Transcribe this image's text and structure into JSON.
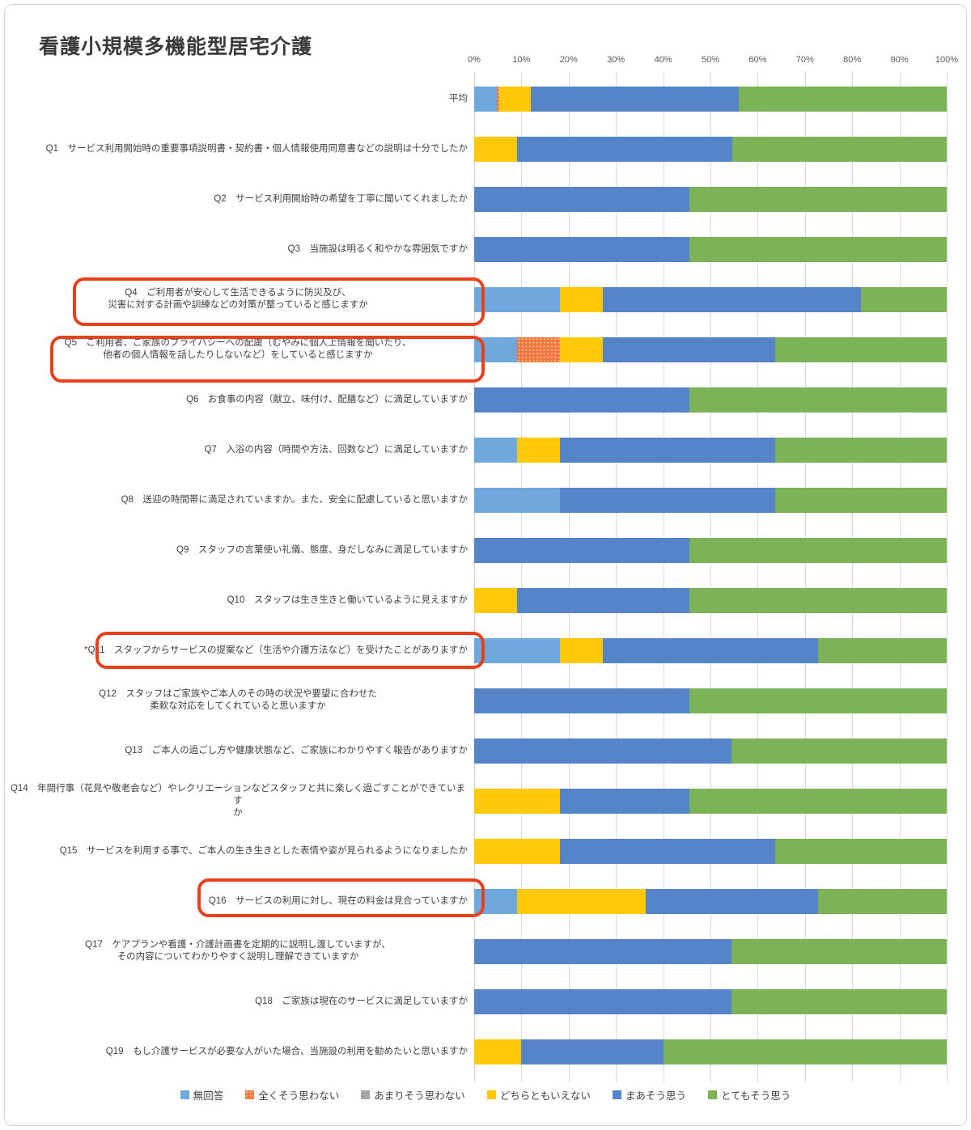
{
  "chart_data": {
    "type": "bar",
    "variant": "stacked-100-horizontal",
    "title": "看護小規模多機能型居宅介護",
    "x_axis": {
      "ticks": [
        "0%",
        "10%",
        "20%",
        "30%",
        "40%",
        "50%",
        "60%",
        "70%",
        "80%",
        "90%",
        "100%"
      ],
      "range": [
        0,
        100
      ],
      "unit": "%"
    },
    "grid": true,
    "legend_position": "bottom",
    "series": [
      {
        "key": "no-answer",
        "name": "無回答",
        "color": "#6FA8DC",
        "pattern": "solid"
      },
      {
        "key": "strongly-disagree",
        "name": "全くそう思わない",
        "color": "#F2764B",
        "pattern": "dotted"
      },
      {
        "key": "somewhat-disagree",
        "name": "あまりそう思わない",
        "color": "#A6A6A6",
        "pattern": "solid"
      },
      {
        "key": "neutral",
        "name": "どちらともいえない",
        "color": "#FFC907",
        "pattern": "solid"
      },
      {
        "key": "somewhat-agree",
        "name": "まあそう思う",
        "color": "#5585C8",
        "pattern": "solid"
      },
      {
        "key": "strongly-agree",
        "name": "とてもそう思う",
        "color": "#7DB357",
        "pattern": "solid"
      }
    ],
    "annotations": {
      "highlight_box_color": "#E8401C",
      "highlighted_rows": [
        "Q4",
        "Q5",
        "*Q11",
        "Q16"
      ]
    },
    "rows": [
      {
        "num": "",
        "lines": [
          "平均"
        ],
        "highlighted": false,
        "values": [
          4.8,
          0.5,
          0,
          6.7,
          44,
          44
        ]
      },
      {
        "num": "Q1",
        "lines": [
          "サービス利用開始時の重要事項説明書・契約書・個人情報使用同意書などの説明は十分でしたか"
        ],
        "highlighted": false,
        "values": [
          0,
          0,
          0,
          9.1,
          45.5,
          45.5
        ]
      },
      {
        "num": "Q2",
        "lines": [
          "サービス利用開始時の希望を丁寧に聞いてくれましたか"
        ],
        "highlighted": false,
        "values": [
          0,
          0,
          0,
          0,
          45.5,
          54.5
        ]
      },
      {
        "num": "Q3",
        "lines": [
          "当施設は明るく和やかな雰囲気ですか"
        ],
        "highlighted": false,
        "values": [
          0,
          0,
          0,
          0,
          45.5,
          54.5
        ]
      },
      {
        "num": "Q4",
        "lines": [
          "ご利用者が安心して生活できるように防災及び、",
          "災害に対する計画や訓練などの対策が整っていると感じますか"
        ],
        "highlighted": true,
        "values": [
          18.2,
          0,
          0,
          9.1,
          54.5,
          18.2
        ]
      },
      {
        "num": "Q5",
        "lines": [
          "ご利用者、ご家族のプライバシーへの配慮（むやみに個人上情報を聞いたり、",
          "他者の個人情報を話したりしないなど）をしていると感じますか"
        ],
        "highlighted": true,
        "values": [
          9.1,
          9.1,
          0,
          9.1,
          36.4,
          36.4
        ]
      },
      {
        "num": "Q6",
        "lines": [
          "お食事の内容（献立、味付け、配膳など）に満足していますか"
        ],
        "highlighted": false,
        "values": [
          0,
          0,
          0,
          0,
          45.5,
          54.5
        ]
      },
      {
        "num": "Q7",
        "lines": [
          "入浴の内容（時間や方法、回数など）に満足していますか"
        ],
        "highlighted": false,
        "values": [
          9.1,
          0,
          0,
          9.1,
          45.5,
          36.4
        ]
      },
      {
        "num": "Q8",
        "lines": [
          "送迎の時間帯に満足されていますか。また、安全に配慮していると思いますか"
        ],
        "highlighted": false,
        "values": [
          18.2,
          0,
          0,
          0,
          45.5,
          36.4
        ]
      },
      {
        "num": "Q9",
        "lines": [
          "スタッフの言葉使い礼儀、態度、身だしなみに満足していますか"
        ],
        "highlighted": false,
        "values": [
          0,
          0,
          0,
          0,
          45.5,
          54.5
        ]
      },
      {
        "num": "Q10",
        "lines": [
          "スタッフは生き生きと働いているように見えますか"
        ],
        "highlighted": false,
        "values": [
          0,
          0,
          0,
          9.1,
          36.4,
          54.5
        ]
      },
      {
        "num": "*Q11",
        "lines": [
          "スタッフからサービスの提案など（生活や介護方法など）を受けたことがありますか"
        ],
        "highlighted": true,
        "values": [
          18.2,
          0,
          0,
          9.1,
          45.5,
          27.3
        ]
      },
      {
        "num": "Q12",
        "lines": [
          "スタッフはご家族やご本人のその時の状況や要望に合わせた",
          "柔軟な対応をしてくれていると思いますか"
        ],
        "highlighted": false,
        "values": [
          0,
          0,
          0,
          0,
          45.5,
          54.5
        ]
      },
      {
        "num": "Q13",
        "lines": [
          "ご本人の過ごし方や健康状態など、ご家族にわかりやすく報告がありますか"
        ],
        "highlighted": false,
        "values": [
          0,
          0,
          0,
          0,
          54.5,
          45.5
        ]
      },
      {
        "num": "Q14",
        "lines": [
          "年間行事（花見や敬老会など）やレクリエーションなどスタッフと共に楽しく過ごすことができています",
          "か"
        ],
        "highlighted": false,
        "values": [
          0,
          0,
          0,
          18.2,
          27.3,
          54.5
        ]
      },
      {
        "num": "Q15",
        "lines": [
          "サービスを利用する事で、ご本人の生き生きとした表情や姿が見られるようになりましたか"
        ],
        "highlighted": false,
        "values": [
          0,
          0,
          0,
          18.2,
          45.5,
          36.4
        ]
      },
      {
        "num": "Q16",
        "lines": [
          "サービスの利用に対し、現在の料金は見合っていますか"
        ],
        "highlighted": true,
        "values": [
          9.1,
          0,
          0,
          27.3,
          36.4,
          27.3
        ]
      },
      {
        "num": "Q17",
        "lines": [
          "ケアプランや看護・介護計画書を定期的に説明し渡していますが、",
          "その内容についてわかりやすく説明し理解できていますか"
        ],
        "highlighted": false,
        "values": [
          0,
          0,
          0,
          0,
          54.5,
          45.5
        ]
      },
      {
        "num": "Q18",
        "lines": [
          "ご家族は現在のサービスに満足していますか"
        ],
        "highlighted": false,
        "values": [
          0,
          0,
          0,
          0,
          54.5,
          45.5
        ]
      },
      {
        "num": "Q19",
        "lines": [
          "もし介護サービスが必要な人がいた場合、当施設の利用を勧めたいと思いますか"
        ],
        "highlighted": false,
        "values": [
          0,
          0,
          0,
          9.1,
          27.3,
          54.5
        ]
      }
    ]
  }
}
